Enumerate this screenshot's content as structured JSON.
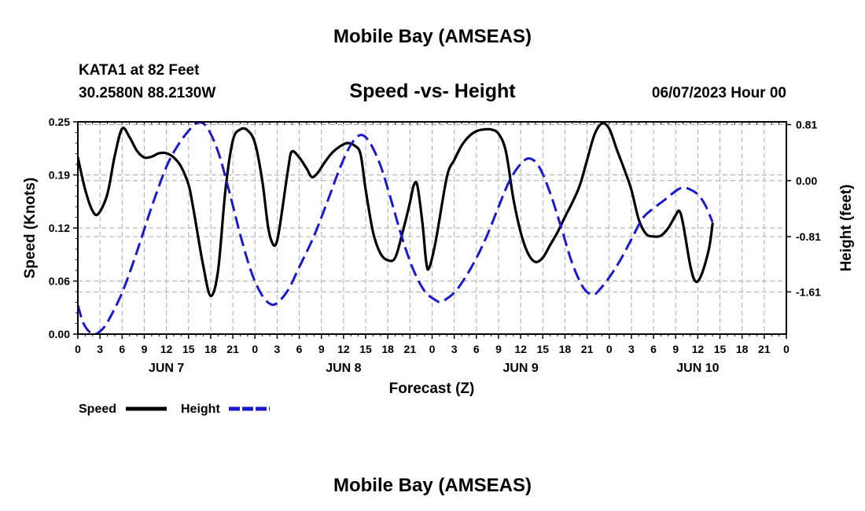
{
  "header": {
    "title": "Mobile Bay (AMSEAS)",
    "station": "KATA1 at 82 Feet",
    "position": "30.2580N  88.2130W",
    "subtitle": "Speed -vs- Height",
    "datetime": "06/07/2023 Hour 00"
  },
  "footer": {
    "title": "Mobile Bay (AMSEAS)"
  },
  "colors": {
    "speed": "#000000",
    "height": "#1a1acc",
    "grid": "#aaaaaa"
  },
  "chart_data": {
    "type": "line",
    "xlabel": "Forecast (Z)",
    "ylabel_left": "Speed (Knots)",
    "ylabel_right": "Height (feet)",
    "x_range_hours": [
      0,
      96
    ],
    "x_tick_labels": [
      "0",
      "3",
      "6",
      "9",
      "12",
      "15",
      "18",
      "21",
      "0",
      "3",
      "6",
      "9",
      "12",
      "15",
      "18",
      "21",
      "0",
      "3",
      "6",
      "9",
      "12",
      "15",
      "18",
      "21",
      "0",
      "3",
      "6",
      "9",
      "12",
      "15",
      "18",
      "21",
      "0"
    ],
    "date_labels": [
      {
        "label": "JUN 7",
        "hour": 12
      },
      {
        "label": "JUN 8",
        "hour": 36
      },
      {
        "label": "JUN 9",
        "hour": 60
      },
      {
        "label": "JUN 10",
        "hour": 84
      }
    ],
    "y_left": {
      "ylim": [
        0,
        0.25
      ],
      "tick_labels": [
        "0.00",
        "0.06",
        "0.12",
        "0.19",
        "0.25"
      ]
    },
    "y_right": {
      "ylim": [
        -2.22,
        0.85
      ],
      "ticks": [
        -1.61,
        -0.81,
        0.0,
        0.81
      ],
      "tick_labels": [
        "-1.61",
        "-0.81",
        "0.00",
        "0.81"
      ]
    },
    "grid": true,
    "legend_position": "bottom-left",
    "series": [
      {
        "name": "Speed",
        "axis": "left",
        "style": "solid",
        "points": [
          [
            0,
            0.208
          ],
          [
            1,
            0.17
          ],
          [
            2,
            0.145
          ],
          [
            2.8,
            0.142
          ],
          [
            4,
            0.165
          ],
          [
            5,
            0.21
          ],
          [
            6,
            0.242
          ],
          [
            7,
            0.232
          ],
          [
            8,
            0.216
          ],
          [
            9,
            0.208
          ],
          [
            10,
            0.209
          ],
          [
            11,
            0.213
          ],
          [
            12,
            0.213
          ],
          [
            13,
            0.208
          ],
          [
            14,
            0.197
          ],
          [
            15,
            0.176
          ],
          [
            15.5,
            0.155
          ],
          [
            16,
            0.13
          ],
          [
            17,
            0.08
          ],
          [
            18,
            0.045
          ],
          [
            19,
            0.075
          ],
          [
            20,
            0.17
          ],
          [
            21,
            0.228
          ],
          [
            22,
            0.241
          ],
          [
            23,
            0.24
          ],
          [
            24,
            0.225
          ],
          [
            25,
            0.18
          ],
          [
            25.8,
            0.125
          ],
          [
            26.5,
            0.105
          ],
          [
            27,
            0.11
          ],
          [
            27.5,
            0.135
          ],
          [
            28.5,
            0.195
          ],
          [
            29,
            0.215
          ],
          [
            30,
            0.208
          ],
          [
            31,
            0.195
          ],
          [
            31.7,
            0.185
          ],
          [
            32.5,
            0.19
          ],
          [
            33.5,
            0.203
          ],
          [
            34.5,
            0.214
          ],
          [
            35.5,
            0.221
          ],
          [
            36.5,
            0.225
          ],
          [
            37.5,
            0.222
          ],
          [
            38.3,
            0.212
          ],
          [
            39,
            0.17
          ],
          [
            40,
            0.12
          ],
          [
            41,
            0.095
          ],
          [
            42,
            0.087
          ],
          [
            43,
            0.09
          ],
          [
            44,
            0.12
          ],
          [
            45,
            0.155
          ],
          [
            45.5,
            0.175
          ],
          [
            46,
            0.175
          ],
          [
            46.7,
            0.13
          ],
          [
            47.2,
            0.085
          ],
          [
            47.6,
            0.078
          ],
          [
            48.5,
            0.11
          ],
          [
            50,
            0.185
          ],
          [
            51,
            0.205
          ],
          [
            52,
            0.222
          ],
          [
            53,
            0.233
          ],
          [
            54,
            0.239
          ],
          [
            55,
            0.241
          ],
          [
            56,
            0.241
          ],
          [
            57,
            0.236
          ],
          [
            58,
            0.215
          ],
          [
            59,
            0.16
          ],
          [
            60,
            0.12
          ],
          [
            61,
            0.095
          ],
          [
            62,
            0.085
          ],
          [
            63,
            0.09
          ],
          [
            64,
            0.105
          ],
          [
            65,
            0.12
          ],
          [
            66,
            0.138
          ],
          [
            67,
            0.155
          ],
          [
            68,
            0.175
          ],
          [
            69,
            0.205
          ],
          [
            70,
            0.235
          ],
          [
            71,
            0.248
          ],
          [
            72,
            0.242
          ],
          [
            73,
            0.218
          ],
          [
            74,
            0.195
          ],
          [
            75,
            0.17
          ],
          [
            76,
            0.135
          ],
          [
            77,
            0.118
          ],
          [
            78,
            0.115
          ],
          [
            79,
            0.116
          ],
          [
            80,
            0.125
          ],
          [
            81,
            0.14
          ],
          [
            81.5,
            0.145
          ],
          [
            82,
            0.13
          ],
          [
            83,
            0.08
          ],
          [
            83.7,
            0.062
          ],
          [
            84.5,
            0.07
          ],
          [
            85.5,
            0.1
          ],
          [
            86,
            0.13
          ]
        ]
      },
      {
        "name": "Height",
        "axis": "right",
        "style": "dashed",
        "points": [
          [
            0,
            -1.8
          ],
          [
            0.7,
            -2.05
          ],
          [
            1.5,
            -2.18
          ],
          [
            2.3,
            -2.22
          ],
          [
            3,
            -2.18
          ],
          [
            4,
            -2.05
          ],
          [
            6,
            -1.62
          ],
          [
            8,
            -1.03
          ],
          [
            10,
            -0.38
          ],
          [
            12,
            0.2
          ],
          [
            13.5,
            0.5
          ],
          [
            15,
            0.72
          ],
          [
            16.3,
            0.84
          ],
          [
            17.5,
            0.77
          ],
          [
            19,
            0.42
          ],
          [
            20.5,
            -0.15
          ],
          [
            22,
            -0.78
          ],
          [
            23.5,
            -1.32
          ],
          [
            24.8,
            -1.63
          ],
          [
            26,
            -1.78
          ],
          [
            27,
            -1.77
          ],
          [
            28.5,
            -1.58
          ],
          [
            30,
            -1.25
          ],
          [
            32,
            -0.8
          ],
          [
            34,
            -0.25
          ],
          [
            35.5,
            0.18
          ],
          [
            37,
            0.52
          ],
          [
            38.3,
            0.66
          ],
          [
            39.5,
            0.56
          ],
          [
            41,
            0.22
          ],
          [
            42.5,
            -0.3
          ],
          [
            44,
            -0.85
          ],
          [
            45.5,
            -1.3
          ],
          [
            47,
            -1.6
          ],
          [
            48.5,
            -1.73
          ],
          [
            49.3,
            -1.75
          ],
          [
            51,
            -1.62
          ],
          [
            52.5,
            -1.4
          ],
          [
            54,
            -1.12
          ],
          [
            55.5,
            -0.78
          ],
          [
            57,
            -0.38
          ],
          [
            58.5,
            0.0
          ],
          [
            60,
            0.24
          ],
          [
            61.2,
            0.32
          ],
          [
            62.5,
            0.2
          ],
          [
            64,
            -0.18
          ],
          [
            65.5,
            -0.68
          ],
          [
            67,
            -1.2
          ],
          [
            68.5,
            -1.55
          ],
          [
            69.7,
            -1.65
          ],
          [
            70.5,
            -1.6
          ],
          [
            72,
            -1.4
          ],
          [
            73.5,
            -1.15
          ],
          [
            75,
            -0.85
          ],
          [
            76.5,
            -0.55
          ],
          [
            78,
            -0.4
          ],
          [
            79.5,
            -0.28
          ],
          [
            81,
            -0.15
          ],
          [
            82,
            -0.1
          ],
          [
            83,
            -0.13
          ],
          [
            84,
            -0.2
          ],
          [
            85,
            -0.35
          ],
          [
            86,
            -0.6
          ]
        ]
      }
    ]
  }
}
